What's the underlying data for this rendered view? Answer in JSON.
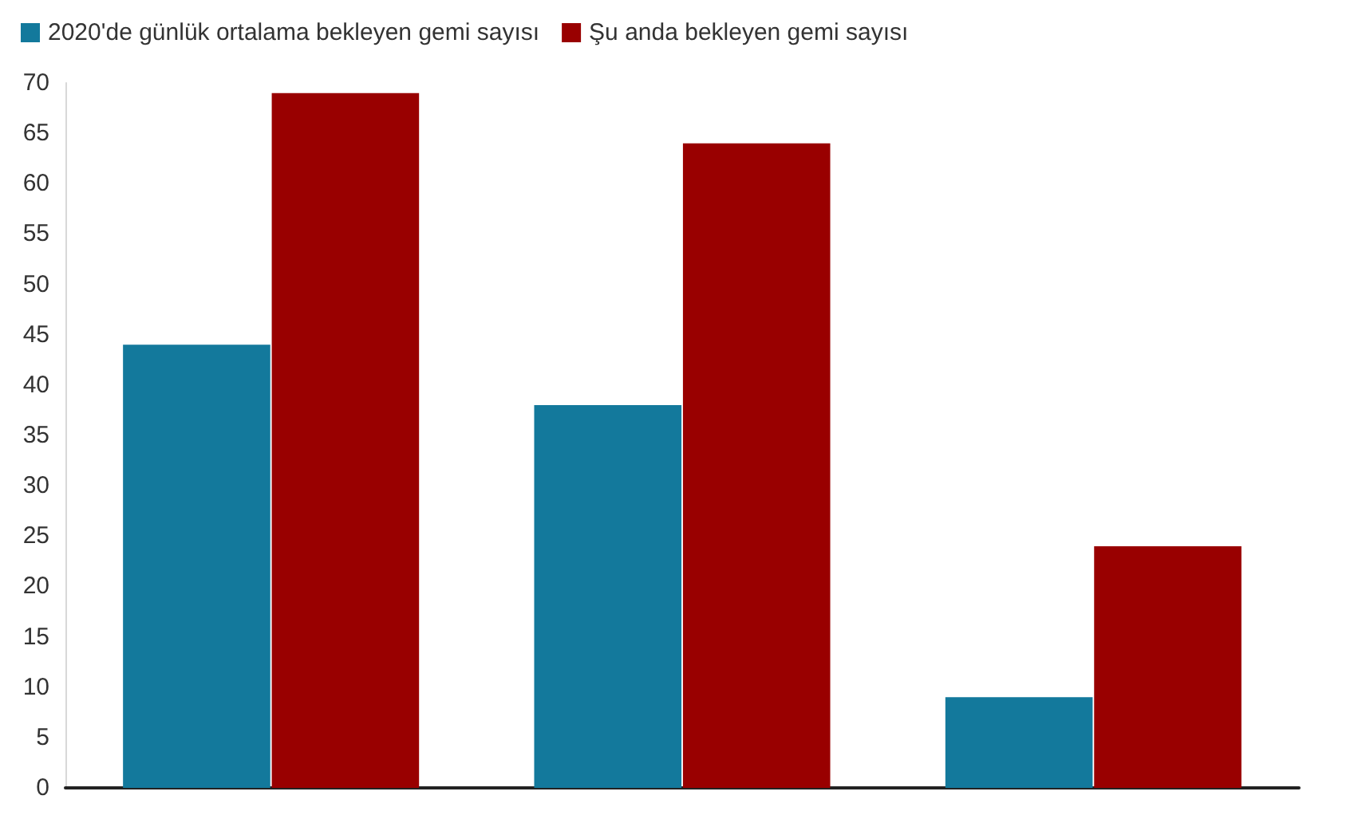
{
  "chart_data": {
    "type": "bar",
    "categories": [
      null,
      null,
      null
    ],
    "series": [
      {
        "name": "2020'de günlük ortalama bekleyen gemi sayısı",
        "color": "#13799c",
        "values": [
          44,
          38,
          9
        ]
      },
      {
        "name": "Şu anda bekleyen gemi sayısı",
        "color": "#990000",
        "values": [
          69,
          64,
          24
        ]
      }
    ],
    "ylim": [
      0,
      70
    ],
    "yticks": [
      0,
      5,
      10,
      15,
      20,
      25,
      30,
      35,
      40,
      45,
      50,
      55,
      60,
      65,
      70
    ],
    "grid": false,
    "legend": "top left",
    "tick_labels": "y"
  }
}
